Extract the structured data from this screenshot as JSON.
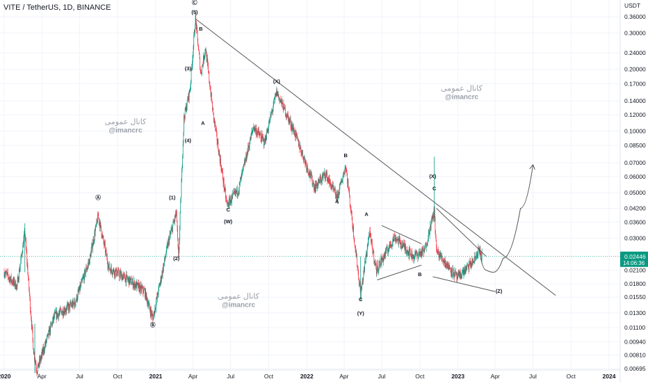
{
  "chart_data": {
    "type": "candlestick",
    "title": "VITE / TetherUS, 1D, BINANCE",
    "y_unit": "USDT",
    "y_scale": "log",
    "ylim": [
      0.00695,
      0.415
    ],
    "y_ticks": [
      "0.36000",
      "0.30000",
      "0.24000",
      "0.20000",
      "0.17000",
      "0.14000",
      "0.12000",
      "0.10000",
      "0.08500",
      "0.07000",
      "0.06000",
      "0.05000",
      "0.04200",
      "0.03600",
      "0.03000",
      "0.02100",
      "0.01800",
      "0.01550",
      "0.01300",
      "0.01100",
      "0.00940",
      "0.00810",
      "0.00695"
    ],
    "x_ticks": [
      "2020",
      "Apr",
      "Jul",
      "Oct",
      "2021",
      "Apr",
      "Jul",
      "Oct",
      "2022",
      "Apr",
      "Jul",
      "Oct",
      "2023",
      "Apr",
      "Jul",
      "Oct",
      "2024"
    ],
    "x_range": [
      "2020-01-01",
      "2024-01-01"
    ],
    "last_price": {
      "value": "0.02446",
      "countdown": "14:06:36",
      "color": "#089981"
    },
    "colors": {
      "up": "#089981",
      "down": "#f23645",
      "lines": "#555555"
    },
    "price_path": [
      [
        "2020-01-01",
        0.0205
      ],
      [
        "2020-02-01",
        0.0175
      ],
      [
        "2020-02-20",
        0.032
      ],
      [
        "2020-03-12",
        0.0085
      ],
      [
        "2020-03-20",
        0.0068
      ],
      [
        "2020-05-01",
        0.0125
      ],
      [
        "2020-06-20",
        0.0145
      ],
      [
        "2020-07-25",
        0.0235
      ],
      [
        "2020-08-15",
        0.0385
      ],
      [
        "2020-09-10",
        0.0215
      ],
      [
        "2020-11-01",
        0.0185
      ],
      [
        "2020-12-05",
        0.0165
      ],
      [
        "2020-12-25",
        0.0122
      ],
      [
        "2021-02-01",
        0.029
      ],
      [
        "2021-02-20",
        0.04
      ],
      [
        "2021-02-25",
        0.0235
      ],
      [
        "2021-03-10",
        0.115
      ],
      [
        "2021-03-25",
        0.16
      ],
      [
        "2021-04-07",
        0.355
      ],
      [
        "2021-04-20",
        0.19
      ],
      [
        "2021-05-01",
        0.255
      ],
      [
        "2021-05-20",
        0.12
      ],
      [
        "2021-06-22",
        0.0435
      ],
      [
        "2021-07-20",
        0.052
      ],
      [
        "2021-08-25",
        0.105
      ],
      [
        "2021-09-21",
        0.088
      ],
      [
        "2021-10-20",
        0.155
      ],
      [
        "2021-12-01",
        0.1
      ],
      [
        "2022-01-20",
        0.053
      ],
      [
        "2022-02-15",
        0.062
      ],
      [
        "2022-03-15",
        0.047
      ],
      [
        "2022-04-05",
        0.068
      ],
      [
        "2022-05-11",
        0.016
      ],
      [
        "2022-06-01",
        0.032
      ],
      [
        "2022-06-18",
        0.021
      ],
      [
        "2022-08-01",
        0.0305
      ],
      [
        "2022-09-15",
        0.0245
      ],
      [
        "2022-10-12",
        0.026
      ],
      [
        "2022-11-05",
        0.041
      ],
      [
        "2022-11-10",
        0.026
      ],
      [
        "2022-12-31",
        0.0192
      ],
      [
        "2023-02-10",
        0.0235
      ],
      [
        "2023-02-20",
        0.0265
      ],
      [
        "2023-02-28",
        0.0245
      ]
    ],
    "trend_lines": [
      {
        "from": [
          "2021-04-07",
          0.352
        ],
        "to": [
          "2023-08-25",
          0.0158
        ]
      },
      {
        "from": [
          "2022-06-20",
          0.0188
        ],
        "to": [
          "2022-10-05",
          0.0222
        ]
      },
      {
        "from": [
          "2022-07-01",
          0.0346
        ],
        "to": [
          "2022-10-05",
          0.0282
        ]
      },
      {
        "from": [
          "2022-11-10",
          0.042
        ],
        "to": [
          "2023-03-10",
          0.0245
        ]
      },
      {
        "from": [
          "2022-11-01",
          0.0195
        ],
        "to": [
          "2023-04-01",
          0.0165
        ]
      }
    ],
    "projection": [
      [
        "2023-02-20",
        0.027
      ],
      [
        "2023-03-10",
        0.021
      ],
      [
        "2023-03-28",
        0.0205
      ],
      [
        "2023-04-20",
        0.024
      ],
      [
        "2023-06-01",
        0.042
      ],
      [
        "2023-07-01",
        0.068
      ]
    ],
    "wave_labels": [
      {
        "t": "Ⓒ",
        "x": "2021-04-05",
        "y": 0.415
      },
      {
        "t": "(5)",
        "x": "2021-04-05",
        "y": 0.372
      },
      {
        "t": "B",
        "x": "2021-04-20",
        "y": 0.308
      },
      {
        "t": "(3)",
        "x": "2021-03-20",
        "y": 0.198
      },
      {
        "t": "A",
        "x": "2021-04-25",
        "y": 0.107
      },
      {
        "t": "(4)",
        "x": "2021-03-20",
        "y": 0.088
      },
      {
        "t": "(1)",
        "x": "2021-02-10",
        "y": 0.0465
      },
      {
        "t": "(2)",
        "x": "2021-02-20",
        "y": 0.0235
      },
      {
        "t": "Ⓐ",
        "x": "2020-08-15",
        "y": 0.0465
      },
      {
        "t": "Ⓑ",
        "x": "2020-12-25",
        "y": 0.01115
      },
      {
        "t": "(X)",
        "x": "2021-10-20",
        "y": 0.171
      },
      {
        "t": "C",
        "x": "2021-06-25",
        "y": 0.0405
      },
      {
        "t": "(W)",
        "x": "2021-06-25",
        "y": 0.0355
      },
      {
        "t": "B",
        "x": "2022-04-05",
        "y": 0.0745
      },
      {
        "t": "A",
        "x": "2022-03-15",
        "y": 0.0445
      },
      {
        "t": "A",
        "x": "2022-05-25",
        "y": 0.0385
      },
      {
        "t": "C",
        "x": "2022-05-11",
        "y": 0.0148
      },
      {
        "t": "(Y)",
        "x": "2022-05-11",
        "y": 0.0127
      },
      {
        "t": "B",
        "x": "2022-10-01",
        "y": 0.0196
      },
      {
        "t": "(X)",
        "x": "2022-11-01",
        "y": 0.059
      },
      {
        "t": "C",
        "x": "2022-11-05",
        "y": 0.0515
      },
      {
        "t": "(Z)",
        "x": "2023-04-10",
        "y": 0.0163
      }
    ],
    "watermarks": [
      {
        "arabic": "كانال عمومی",
        "handle": "@imancrc",
        "x": "2020-10-20",
        "y": 0.108
      },
      {
        "arabic": "كانال عمومی",
        "handle": "@imancrc",
        "x": "2021-07-20",
        "y": 0.0152
      },
      {
        "arabic": "كانال عمومی",
        "handle": "@imancrc",
        "x": "2023-01-10",
        "y": 0.157
      }
    ]
  }
}
